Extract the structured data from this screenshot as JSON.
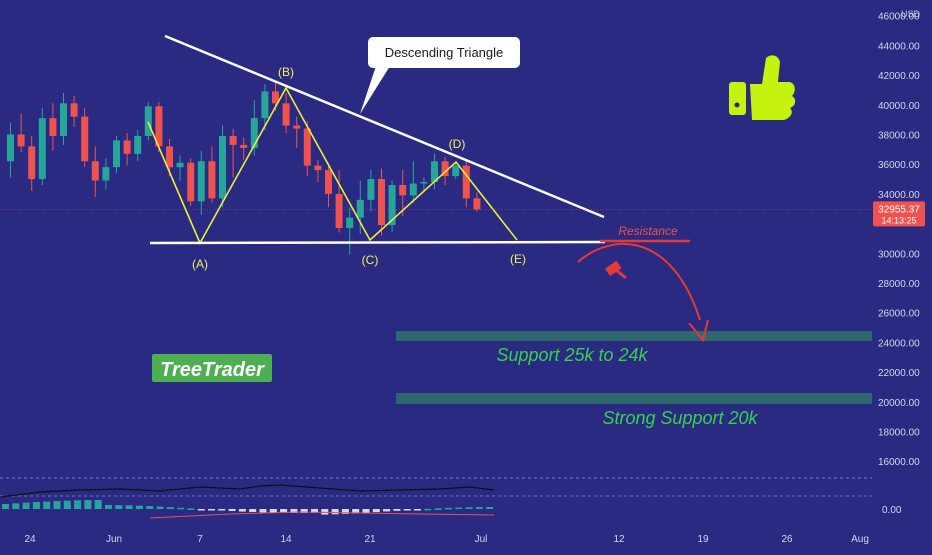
{
  "chart_data": {
    "type": "candlestick",
    "currency": "USD",
    "ylim": [
      14000,
      47000
    ],
    "price_ticks": [
      "46000.00",
      "44000.00",
      "42000.00",
      "40000.00",
      "38000.00",
      "36000.00",
      "34000.00",
      "30000.00",
      "28000.00",
      "26000.00",
      "24000.00",
      "22000.00",
      "20000.00",
      "18000.00",
      "16000.00"
    ],
    "indicator_tick": "0.00",
    "date_ticks": [
      "24",
      "Jun",
      "7",
      "14",
      "21",
      "Jul",
      "12",
      "19",
      "26",
      "Aug"
    ],
    "last_price": "32955.37",
    "countdown": "14:13:25",
    "candles": [
      [
        36200,
        38800,
        35100,
        38000
      ],
      [
        38000,
        39400,
        36800,
        37200
      ],
      [
        37200,
        37900,
        34200,
        35000
      ],
      [
        35000,
        39800,
        34600,
        39100
      ],
      [
        39100,
        40100,
        36900,
        37900
      ],
      [
        37900,
        40800,
        37300,
        40100
      ],
      [
        40100,
        40600,
        38500,
        39200
      ],
      [
        39200,
        39800,
        35800,
        36200
      ],
      [
        36200,
        37200,
        33800,
        34900
      ],
      [
        34900,
        36400,
        34300,
        35800
      ],
      [
        35800,
        37900,
        35400,
        37600
      ],
      [
        37600,
        38100,
        35900,
        36700
      ],
      [
        36700,
        38300,
        36200,
        37900
      ],
      [
        37900,
        40200,
        37600,
        39900
      ],
      [
        39900,
        40200,
        36800,
        37200
      ],
      [
        37200,
        37700,
        35200,
        35800
      ],
      [
        35800,
        36600,
        34900,
        36100
      ],
      [
        36100,
        36400,
        33200,
        33500
      ],
      [
        33500,
        36900,
        32600,
        36200
      ],
      [
        36200,
        37200,
        33400,
        33700
      ],
      [
        33700,
        38600,
        33100,
        37900
      ],
      [
        37900,
        38400,
        35100,
        37300
      ],
      [
        37300,
        37800,
        36300,
        37100
      ],
      [
        37100,
        40300,
        36600,
        39100
      ],
      [
        39100,
        41400,
        38300,
        40900
      ],
      [
        40900,
        41600,
        39600,
        40100
      ],
      [
        40100,
        40800,
        38100,
        38600
      ],
      [
        38600,
        39200,
        37100,
        38400
      ],
      [
        38400,
        38900,
        35200,
        35900
      ],
      [
        35900,
        36300,
        34800,
        35600
      ],
      [
        35600,
        36100,
        33100,
        34000
      ],
      [
        34000,
        35600,
        31400,
        31700
      ],
      [
        31700,
        33100,
        29900,
        32400
      ],
      [
        32400,
        34900,
        31300,
        33600
      ],
      [
        33600,
        35600,
        32800,
        35000
      ],
      [
        35000,
        35700,
        31200,
        31900
      ],
      [
        31900,
        34900,
        31400,
        34600
      ],
      [
        34600,
        35600,
        32500,
        33900
      ],
      [
        33900,
        36200,
        33400,
        34700
      ],
      [
        34700,
        35100,
        34100,
        34800
      ],
      [
        34800,
        36700,
        34300,
        36200
      ],
      [
        36200,
        36500,
        34600,
        35200
      ],
      [
        35200,
        36100,
        35000,
        35900
      ],
      [
        35900,
        36200,
        33100,
        33700
      ],
      [
        33700,
        34100,
        32800,
        32955
      ]
    ],
    "annotations": {
      "pattern_label": "Descending Triangle",
      "points": [
        "(A)",
        "(B)",
        "(C)",
        "(D)",
        "(E)"
      ],
      "resistance_label": "Resistance",
      "support_1_label": "Support  25k to 24k",
      "support_2_label": "Strong Support 20k",
      "brand": "TreeTrader"
    }
  }
}
